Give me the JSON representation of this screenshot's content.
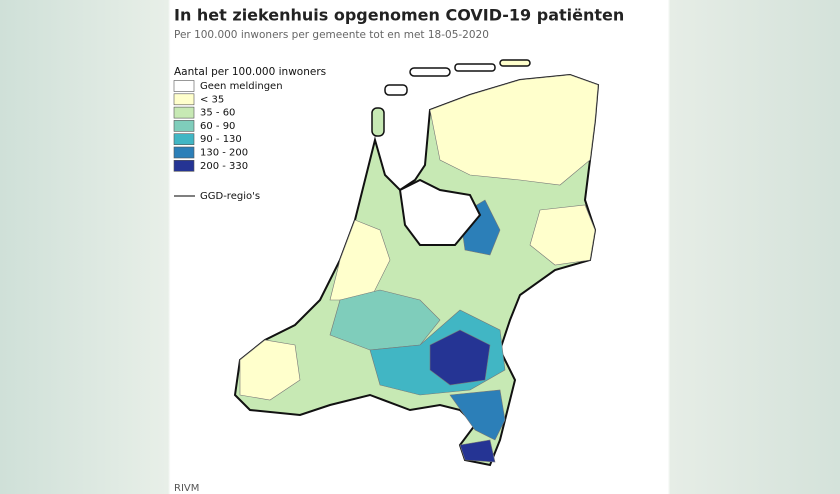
{
  "header": {
    "title": "In het ziekenhuis opgenomen COVID-19 patiënten",
    "subtitle": "Per 100.000 inwoners per gemeente tot en met 18-05-2020"
  },
  "legend": {
    "title": "Aantal per 100.000 inwoners",
    "items": [
      {
        "label": "Geen meldingen",
        "color": "#ffffff"
      },
      {
        "label": "< 35",
        "color": "#ffffcc"
      },
      {
        "label": "35 - 60",
        "color": "#c7e9b4"
      },
      {
        "label": "60 - 90",
        "color": "#7fcdbb"
      },
      {
        "label": "90 - 130",
        "color": "#41b6c4"
      },
      {
        "label": "130 - 200",
        "color": "#2c7fb8"
      },
      {
        "label": "200 - 330",
        "color": "#253494"
      }
    ],
    "line_label": "GGD-regio's"
  },
  "source": "RIVM"
}
